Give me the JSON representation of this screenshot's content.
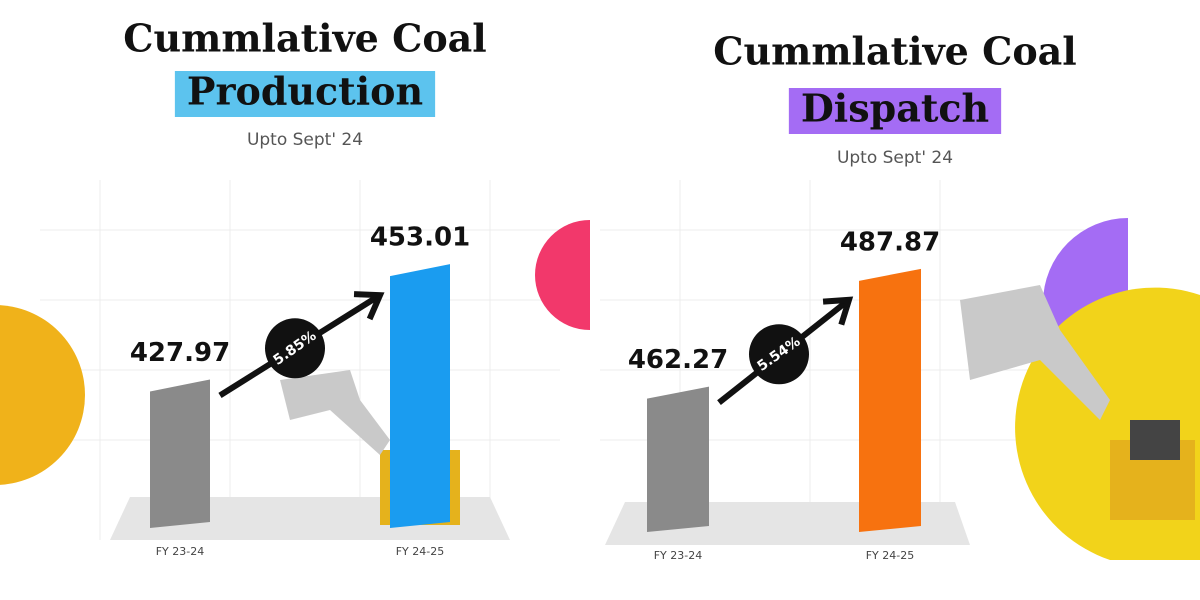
{
  "chart_data": [
    {
      "type": "bar",
      "title": "Cummlative Coal",
      "title_highlight": "Production",
      "highlight_color": "#5cc3ee",
      "subtitle": "Upto Sept' 24",
      "categories": [
        "FY 23-24",
        "FY 24-25"
      ],
      "values": [
        427.97,
        453.01
      ],
      "colors": [
        "#8a8a8a",
        "#1a9cf0"
      ],
      "growth": "5.85%",
      "ylim": [
        397,
        460
      ]
    },
    {
      "type": "bar",
      "title": "Cummlative Coal",
      "title_highlight": "Dispatch",
      "highlight_color": "#a46cf4",
      "subtitle": "Upto Sept' 24",
      "categories": [
        "FY 23-24",
        "FY 24-25"
      ],
      "values": [
        462.27,
        487.87
      ],
      "colors": [
        "#8a8a8a",
        "#f7720f"
      ],
      "growth": "5.54%",
      "ylim": [
        432,
        495
      ]
    }
  ]
}
